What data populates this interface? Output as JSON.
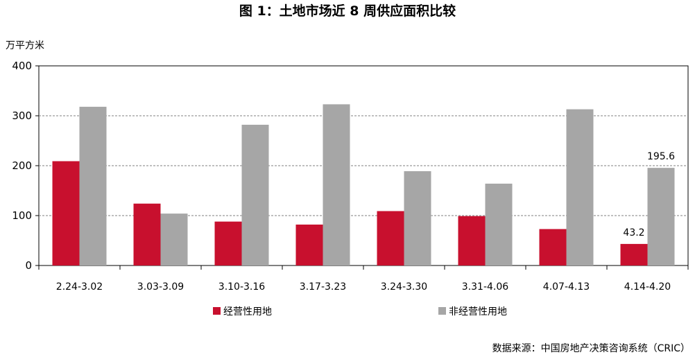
{
  "chart_data": {
    "type": "bar",
    "title": "图 1：土地市场近 8 周供应面积比较",
    "ylabel": "万平方米",
    "xlabel": "",
    "ylim": [
      0,
      400
    ],
    "yticks": [
      "0",
      "100",
      "200",
      "300",
      "400"
    ],
    "grid": true,
    "legend_position": "bottom",
    "categories": [
      "2.24-3.02",
      "3.03-3.09",
      "3.10-3.16",
      "3.17-3.23",
      "3.24-3.30",
      "3.31-4.06",
      "4.07-4.13",
      "4.14-4.20"
    ],
    "series": [
      {
        "name": "经营性用地",
        "color": "#C8102E",
        "values": [
          209,
          124,
          88,
          82,
          109,
          99,
          73,
          43.2
        ]
      },
      {
        "name": "非经营性用地",
        "color": "#A6A6A6",
        "values": [
          318,
          104,
          282,
          323,
          189,
          164,
          313,
          195.6
        ]
      }
    ],
    "annotations": [
      {
        "series": 0,
        "index": 7,
        "text": "43.2"
      },
      {
        "series": 1,
        "index": 7,
        "text": "195.6"
      }
    ],
    "source": "数据来源：中国房地产决策咨询系统（CRIC）"
  }
}
